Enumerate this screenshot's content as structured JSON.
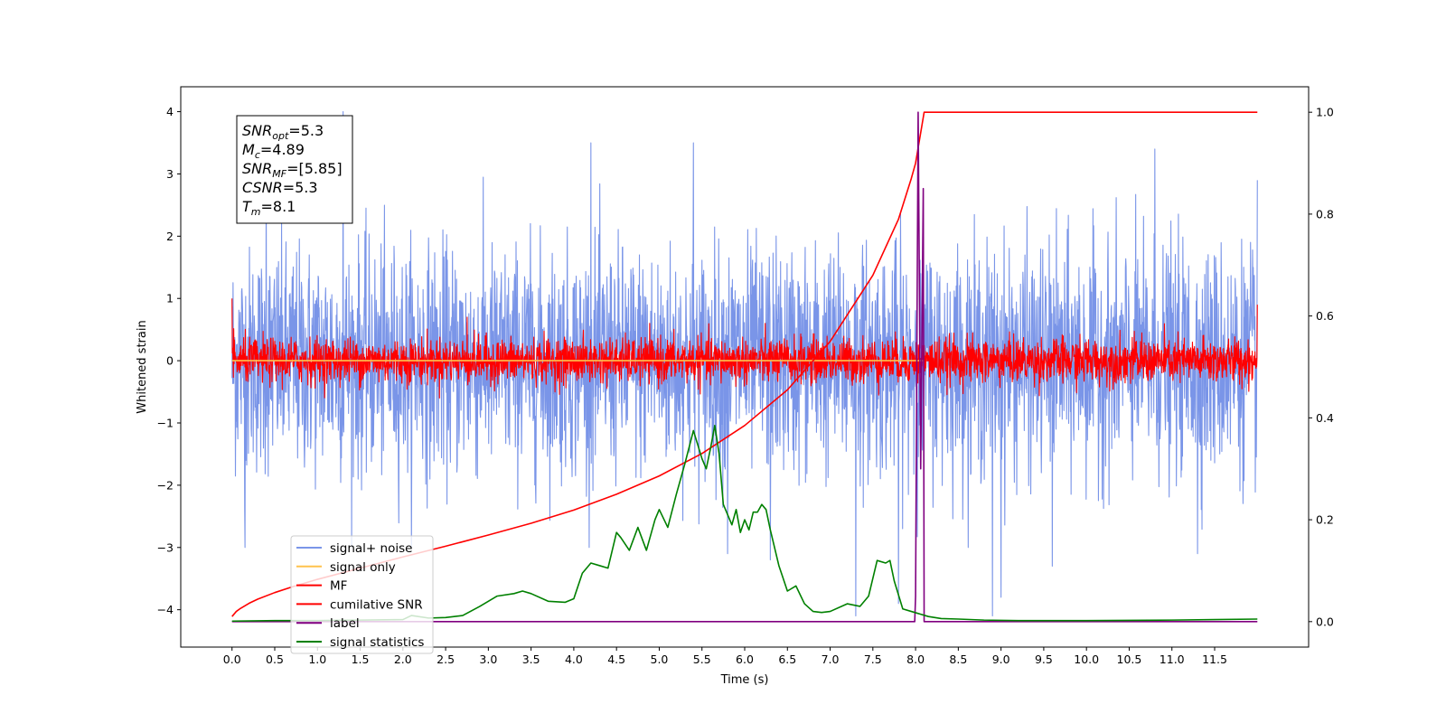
{
  "chart_data": {
    "type": "line",
    "xlabel": "Time (s)",
    "ylabel": "Whitened strain",
    "xlim": [
      -0.6,
      12.6
    ],
    "ylim": [
      -4.6,
      4.4
    ],
    "y2lim": [
      -0.05,
      1.05
    ],
    "x_ticks": [
      0.0,
      0.5,
      1.0,
      1.5,
      2.0,
      2.5,
      3.0,
      3.5,
      4.0,
      4.5,
      5.0,
      5.5,
      6.0,
      6.5,
      7.0,
      7.5,
      8.0,
      8.5,
      9.0,
      9.5,
      10.0,
      10.5,
      11.0,
      11.5
    ],
    "x_tick_labels": [
      "0.0",
      "0.5",
      "1.0",
      "1.5",
      "2.0",
      "2.5",
      "3.0",
      "3.5",
      "4.0",
      "4.5",
      "5.0",
      "5.5",
      "6.0",
      "6.5",
      "7.0",
      "7.5",
      "8.0",
      "8.5",
      "9.0",
      "9.5",
      "10.0",
      "10.5",
      "11.0",
      "11.5"
    ],
    "y_ticks": [
      -4,
      -3,
      -2,
      -1,
      0,
      1,
      2,
      3,
      4
    ],
    "y_tick_labels": [
      "−4",
      "−3",
      "−2",
      "−1",
      "0",
      "1",
      "2",
      "3",
      "4"
    ],
    "y2_ticks": [
      0.0,
      0.2,
      0.4,
      0.6,
      0.8,
      1.0
    ],
    "y2_tick_labels": [
      "0.0",
      "0.2",
      "0.4",
      "0.6",
      "0.8",
      "1.0"
    ],
    "legend_position": "lower-left",
    "series": [
      {
        "name": "signal+ noise",
        "axis": "left",
        "color": "#7a95e8",
        "kind": "noise",
        "x_range": [
          0.0,
          12.0
        ],
        "amplitude": 1.0,
        "peaks_high": [
          [
            1.3,
            4.0
          ],
          [
            0.4,
            3.2
          ],
          [
            4.2,
            3.5
          ],
          [
            5.4,
            3.5
          ],
          [
            7.3,
            3.4
          ],
          [
            7.8,
            3.3
          ],
          [
            10.8,
            3.4
          ],
          [
            12.0,
            2.9
          ]
        ],
        "peaks_low": [
          [
            0.15,
            -3.0
          ],
          [
            5.8,
            -3.1
          ],
          [
            6.3,
            -3.2
          ],
          [
            7.3,
            -4.1
          ],
          [
            7.8,
            -3.9
          ],
          [
            8.9,
            -4.1
          ],
          [
            9.0,
            -3.8
          ],
          [
            9.6,
            -3.3
          ],
          [
            11.3,
            -3.1
          ]
        ]
      },
      {
        "name": "signal only",
        "axis": "left",
        "color": "#ffc24d",
        "kind": "flat",
        "x_range": [
          0.0,
          8.1
        ],
        "value": 0.0
      },
      {
        "name": "MF",
        "axis": "left",
        "color": "#ff0000",
        "kind": "noise",
        "x_range": [
          0.0,
          12.0
        ],
        "amplitude": 0.2,
        "peaks_high": [
          [
            0.0,
            1.0
          ],
          [
            2.75,
            0.7
          ]
        ],
        "peaks_low": [],
        "end_spike": 0.9
      },
      {
        "name": "cumilative SNR",
        "axis": "right",
        "color": "#ff0000",
        "kind": "line",
        "x": [
          0.0,
          0.05,
          0.1,
          0.2,
          0.3,
          0.5,
          0.7,
          1.0,
          1.5,
          2.0,
          2.5,
          3.0,
          3.5,
          4.0,
          4.5,
          5.0,
          5.5,
          6.0,
          6.5,
          7.0,
          7.5,
          7.8,
          7.95,
          8.0,
          8.04,
          8.07,
          8.1,
          8.5,
          9.0,
          10.0,
          11.0,
          12.0
        ],
        "y": [
          0.01,
          0.02,
          0.026,
          0.036,
          0.044,
          0.057,
          0.068,
          0.083,
          0.105,
          0.127,
          0.148,
          0.17,
          0.193,
          0.219,
          0.25,
          0.286,
          0.33,
          0.385,
          0.455,
          0.55,
          0.68,
          0.79,
          0.87,
          0.9,
          0.94,
          0.97,
          1.0,
          1.0,
          1.0,
          1.0,
          1.0,
          1.0
        ]
      },
      {
        "name": "label",
        "axis": "right",
        "color": "#800080",
        "kind": "line",
        "x": [
          0.0,
          7.99,
          8.0,
          8.03,
          8.06,
          8.09,
          8.1,
          12.0
        ],
        "y": [
          0.0,
          0.0,
          0.05,
          1.0,
          0.3,
          0.85,
          0.0,
          0.0
        ]
      },
      {
        "name": "signal statistics",
        "axis": "right",
        "color": "#008000",
        "kind": "line",
        "x": [
          0.0,
          0.5,
          1.0,
          1.5,
          2.0,
          2.1,
          2.3,
          2.5,
          2.7,
          2.9,
          3.1,
          3.3,
          3.4,
          3.5,
          3.7,
          3.9,
          4.0,
          4.1,
          4.2,
          4.3,
          4.4,
          4.5,
          4.55,
          4.65,
          4.75,
          4.85,
          4.95,
          5.0,
          5.1,
          5.2,
          5.3,
          5.4,
          5.5,
          5.55,
          5.6,
          5.65,
          5.7,
          5.75,
          5.8,
          5.85,
          5.9,
          5.95,
          6.0,
          6.05,
          6.1,
          6.15,
          6.2,
          6.25,
          6.3,
          6.4,
          6.5,
          6.6,
          6.7,
          6.8,
          6.9,
          7.0,
          7.2,
          7.35,
          7.45,
          7.55,
          7.65,
          7.7,
          7.75,
          7.85,
          7.95,
          8.05,
          8.15,
          8.3,
          8.5,
          8.8,
          9.2,
          9.6,
          10.0,
          11.0,
          11.5,
          12.0
        ],
        "y": [
          0.001,
          0.002,
          0.002,
          0.003,
          0.004,
          0.012,
          0.007,
          0.008,
          0.012,
          0.03,
          0.05,
          0.055,
          0.06,
          0.055,
          0.04,
          0.038,
          0.045,
          0.095,
          0.115,
          0.11,
          0.105,
          0.175,
          0.165,
          0.14,
          0.185,
          0.14,
          0.2,
          0.22,
          0.185,
          0.25,
          0.31,
          0.375,
          0.32,
          0.3,
          0.34,
          0.385,
          0.33,
          0.23,
          0.21,
          0.19,
          0.22,
          0.175,
          0.2,
          0.18,
          0.215,
          0.215,
          0.23,
          0.22,
          0.18,
          0.11,
          0.06,
          0.07,
          0.035,
          0.02,
          0.018,
          0.02,
          0.035,
          0.03,
          0.05,
          0.12,
          0.115,
          0.12,
          0.08,
          0.025,
          0.02,
          0.015,
          0.01,
          0.006,
          0.005,
          0.003,
          0.002,
          0.002,
          0.002,
          0.003,
          0.004,
          0.005
        ]
      }
    ],
    "annotations": [
      {
        "base": "SNR",
        "sub": "opt",
        "rest": "=5.3"
      },
      {
        "base": "M",
        "sub": "c",
        "rest": "=4.89"
      },
      {
        "base": "SNR",
        "sub": "MF",
        "rest": "=[5.85]"
      },
      {
        "base": "CSNR",
        "sub": "",
        "rest": "=5.3"
      },
      {
        "base": "T",
        "sub": "m",
        "rest": "=8.1"
      }
    ]
  }
}
